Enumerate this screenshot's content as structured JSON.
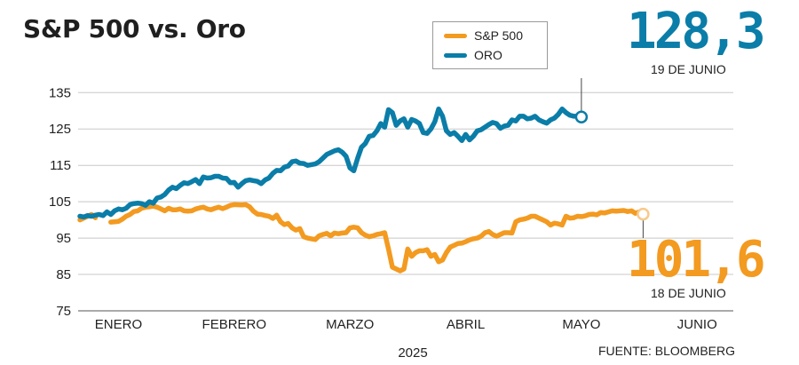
{
  "title": "S&P 500 vs. Oro",
  "source": "FUENTE: BLOOMBERG",
  "colors": {
    "sp500": "#f39a20",
    "gold": "#0a7da8",
    "grid": "#c8c8c8",
    "text": "#222222"
  },
  "callouts": {
    "gold": {
      "value": "128,3",
      "date": "19 DE JUNIO"
    },
    "sp500": {
      "value": "101,6",
      "date": "18 DE JUNIO"
    }
  },
  "chart_data": {
    "type": "line",
    "title": "S&P 500 vs. Oro",
    "xlabel": "2025",
    "ylabel": "",
    "ylim": [
      75,
      138
    ],
    "yticks": [
      75,
      85,
      95,
      105,
      115,
      125,
      135
    ],
    "x_tick_labels": [
      "ENERO",
      "FEBRERO",
      "MARZO",
      "ABRIL",
      "MAYO",
      "JUNIO"
    ],
    "x_tick_positions": [
      10,
      40,
      70,
      100,
      130,
      160
    ],
    "xlim": [
      0,
      168
    ],
    "grid": "horizontal",
    "legend_position": "top-center",
    "series": [
      {
        "name": "S&P 500",
        "key": "sp500",
        "gaps": [
          [
            4,
            8
          ],
          [
            141,
            146
          ]
        ],
        "points": [
          [
            0,
            100
          ],
          [
            1,
            100.5
          ],
          [
            2,
            101
          ],
          [
            3,
            101.5
          ],
          [
            4,
            100.6
          ],
          [
            8,
            99.4
          ],
          [
            9,
            99.5
          ],
          [
            10,
            99.6
          ],
          [
            11,
            100.2
          ],
          [
            12,
            101
          ],
          [
            13,
            101.5
          ],
          [
            14,
            102.3
          ],
          [
            15,
            102.5
          ],
          [
            16,
            103.2
          ],
          [
            17,
            103.5
          ],
          [
            18,
            103.6
          ],
          [
            19,
            103.8
          ],
          [
            20,
            103.5
          ],
          [
            21,
            103
          ],
          [
            22,
            102.5
          ],
          [
            23,
            103.2
          ],
          [
            24,
            102.8
          ],
          [
            25,
            102.8
          ],
          [
            26,
            103
          ],
          [
            27,
            102.5
          ],
          [
            28,
            102.4
          ],
          [
            29,
            102.5
          ],
          [
            30,
            103
          ],
          [
            31,
            103.3
          ],
          [
            32,
            103.5
          ],
          [
            33,
            103
          ],
          [
            34,
            102.8
          ],
          [
            35,
            103.2
          ],
          [
            36,
            103.5
          ],
          [
            37,
            103.1
          ],
          [
            38,
            103.5
          ],
          [
            39,
            104
          ],
          [
            40,
            104.2
          ],
          [
            42,
            104.1
          ],
          [
            43,
            104.2
          ],
          [
            44,
            103.6
          ],
          [
            45,
            102.4
          ],
          [
            46,
            101.6
          ],
          [
            47,
            101.5
          ],
          [
            48,
            101.2
          ],
          [
            49,
            101
          ],
          [
            50,
            100.4
          ],
          [
            51,
            101.3
          ],
          [
            52,
            99.5
          ],
          [
            53,
            98.7
          ],
          [
            54,
            99
          ],
          [
            55,
            97.8
          ],
          [
            56,
            97.2
          ],
          [
            57,
            97.6
          ],
          [
            58,
            95.4
          ],
          [
            59,
            95
          ],
          [
            60,
            94.8
          ],
          [
            61,
            94.6
          ],
          [
            62,
            95.6
          ],
          [
            63,
            96
          ],
          [
            64,
            96.3
          ],
          [
            65,
            95.6
          ],
          [
            66,
            96.4
          ],
          [
            67,
            96.2
          ],
          [
            68,
            96.4
          ],
          [
            69,
            96.5
          ],
          [
            70,
            97.8
          ],
          [
            71,
            98
          ],
          [
            72,
            97.8
          ],
          [
            73,
            96.5
          ],
          [
            74,
            95.8
          ],
          [
            75,
            95.4
          ],
          [
            76,
            95.6
          ],
          [
            77,
            96
          ],
          [
            78,
            96.2
          ],
          [
            79,
            96.5
          ],
          [
            80,
            92
          ],
          [
            81,
            87
          ],
          [
            82,
            86.5
          ],
          [
            83,
            86
          ],
          [
            84,
            86.5
          ],
          [
            85,
            92
          ],
          [
            86,
            90
          ],
          [
            87,
            91
          ],
          [
            88,
            91.5
          ],
          [
            89,
            91.5
          ],
          [
            90,
            91.8
          ],
          [
            91,
            90
          ],
          [
            92,
            90.5
          ],
          [
            93,
            88.5
          ],
          [
            94,
            89
          ],
          [
            95,
            91
          ],
          [
            96,
            92.5
          ],
          [
            97,
            93
          ],
          [
            98,
            93.5
          ],
          [
            99,
            93.6
          ],
          [
            100,
            94
          ],
          [
            101,
            94.5
          ],
          [
            102,
            94.8
          ],
          [
            103,
            95
          ],
          [
            104,
            95.5
          ],
          [
            105,
            96.5
          ],
          [
            106,
            96.8
          ],
          [
            107,
            96
          ],
          [
            108,
            95.5
          ],
          [
            109,
            96
          ],
          [
            110,
            96.5
          ],
          [
            111,
            96.5
          ],
          [
            112,
            96.4
          ],
          [
            113,
            99.5
          ],
          [
            114,
            100
          ],
          [
            115,
            100.2
          ],
          [
            116,
            100.5
          ],
          [
            117,
            101
          ],
          [
            118,
            101
          ],
          [
            119,
            100.5
          ],
          [
            120,
            100
          ],
          [
            121,
            99.5
          ],
          [
            122,
            98.6
          ],
          [
            123,
            99.1
          ],
          [
            124,
            98.9
          ],
          [
            125,
            98.6
          ],
          [
            126,
            101
          ],
          [
            127,
            100.5
          ],
          [
            128,
            100.6
          ],
          [
            129,
            101
          ],
          [
            130,
            100.9
          ],
          [
            131,
            101.1
          ],
          [
            132,
            101.5
          ],
          [
            133,
            101.6
          ],
          [
            134,
            101.4
          ],
          [
            135,
            102
          ],
          [
            136,
            101.9
          ],
          [
            137,
            102.2
          ],
          [
            138,
            102.5
          ],
          [
            139,
            102.4
          ],
          [
            140,
            102.5
          ],
          [
            141,
            102.6
          ],
          [
            142,
            102.3
          ],
          [
            143,
            102.5
          ],
          [
            144,
            101.8
          ],
          [
            145,
            102.2
          ],
          [
            146,
            101.6
          ]
        ]
      },
      {
        "name": "ORO",
        "key": "gold",
        "points": [
          [
            0,
            101
          ],
          [
            1,
            100.8
          ],
          [
            2,
            101.2
          ],
          [
            3,
            101
          ],
          [
            4,
            101.3
          ],
          [
            5,
            101.5
          ],
          [
            6,
            101.2
          ],
          [
            7,
            102.2
          ],
          [
            8,
            101.5
          ],
          [
            9,
            102.5
          ],
          [
            10,
            103
          ],
          [
            11,
            102.8
          ],
          [
            12,
            103.2
          ],
          [
            13,
            104.2
          ],
          [
            14,
            104.5
          ],
          [
            15,
            104.6
          ],
          [
            16,
            104.5
          ],
          [
            17,
            104
          ],
          [
            18,
            105
          ],
          [
            19,
            104.6
          ],
          [
            20,
            106
          ],
          [
            21,
            106.3
          ],
          [
            22,
            107
          ],
          [
            23,
            108.2
          ],
          [
            24,
            109
          ],
          [
            25,
            108.6
          ],
          [
            26,
            109.5
          ],
          [
            27,
            110.2
          ],
          [
            28,
            110
          ],
          [
            29,
            110.5
          ],
          [
            30,
            111.1
          ],
          [
            31,
            110
          ],
          [
            32,
            111.8
          ],
          [
            33,
            111.5
          ],
          [
            34,
            111.6
          ],
          [
            35,
            112
          ],
          [
            36,
            112
          ],
          [
            37,
            111.5
          ],
          [
            38,
            111.4
          ],
          [
            39,
            110.2
          ],
          [
            40,
            110.3
          ],
          [
            41,
            109
          ],
          [
            42,
            110
          ],
          [
            43,
            110.8
          ],
          [
            44,
            111
          ],
          [
            45,
            110.8
          ],
          [
            46,
            110.6
          ],
          [
            47,
            110
          ],
          [
            48,
            111
          ],
          [
            49,
            111.5
          ],
          [
            50,
            112.8
          ],
          [
            51,
            113.6
          ],
          [
            52,
            113.5
          ],
          [
            53,
            114.5
          ],
          [
            54,
            114.8
          ],
          [
            55,
            116
          ],
          [
            56,
            116.2
          ],
          [
            57,
            115.6
          ],
          [
            58,
            115.5
          ],
          [
            59,
            115
          ],
          [
            60,
            115.2
          ],
          [
            61,
            115.4
          ],
          [
            62,
            116
          ],
          [
            63,
            117
          ],
          [
            64,
            118
          ],
          [
            65,
            118.5
          ],
          [
            66,
            119
          ],
          [
            67,
            119.3
          ],
          [
            68,
            118.6
          ],
          [
            69,
            117.5
          ],
          [
            70,
            114.3
          ],
          [
            71,
            113.5
          ],
          [
            72,
            117
          ],
          [
            73,
            120
          ],
          [
            74,
            121
          ],
          [
            75,
            123
          ],
          [
            76,
            123.2
          ],
          [
            77,
            124.5
          ],
          [
            78,
            126.5
          ],
          [
            79,
            125.5
          ],
          [
            80,
            130.3
          ],
          [
            81,
            129.5
          ],
          [
            82,
            126
          ],
          [
            83,
            127.2
          ],
          [
            84,
            127.8
          ],
          [
            85,
            125.5
          ],
          [
            86,
            127.6
          ],
          [
            87,
            127.2
          ],
          [
            88,
            126.5
          ],
          [
            89,
            124
          ],
          [
            90,
            123.8
          ],
          [
            91,
            125
          ],
          [
            92,
            127
          ],
          [
            93,
            130.5
          ],
          [
            94,
            128.5
          ],
          [
            95,
            124.5
          ],
          [
            96,
            123.5
          ],
          [
            97,
            124
          ],
          [
            98,
            123
          ],
          [
            99,
            121.8
          ],
          [
            100,
            123.5
          ],
          [
            101,
            122
          ],
          [
            102,
            123
          ],
          [
            103,
            124.5
          ],
          [
            104,
            124.8
          ],
          [
            105,
            125.5
          ],
          [
            106,
            126.2
          ],
          [
            107,
            126.8
          ],
          [
            108,
            126.5
          ],
          [
            109,
            125.2
          ],
          [
            110,
            125.8
          ],
          [
            111,
            126
          ],
          [
            112,
            127.5
          ],
          [
            113,
            127.2
          ],
          [
            114,
            128.5
          ],
          [
            115,
            128.5
          ],
          [
            116,
            127.8
          ],
          [
            117,
            128
          ],
          [
            118,
            128.5
          ],
          [
            119,
            127.5
          ],
          [
            120,
            127
          ],
          [
            121,
            126.6
          ],
          [
            122,
            127.5
          ],
          [
            123,
            128
          ],
          [
            124,
            129
          ],
          [
            125,
            130.5
          ],
          [
            126,
            129.5
          ],
          [
            127,
            128.8
          ],
          [
            128,
            128.5
          ],
          [
            129,
            128.5
          ],
          [
            130,
            128.3
          ]
        ]
      }
    ]
  }
}
